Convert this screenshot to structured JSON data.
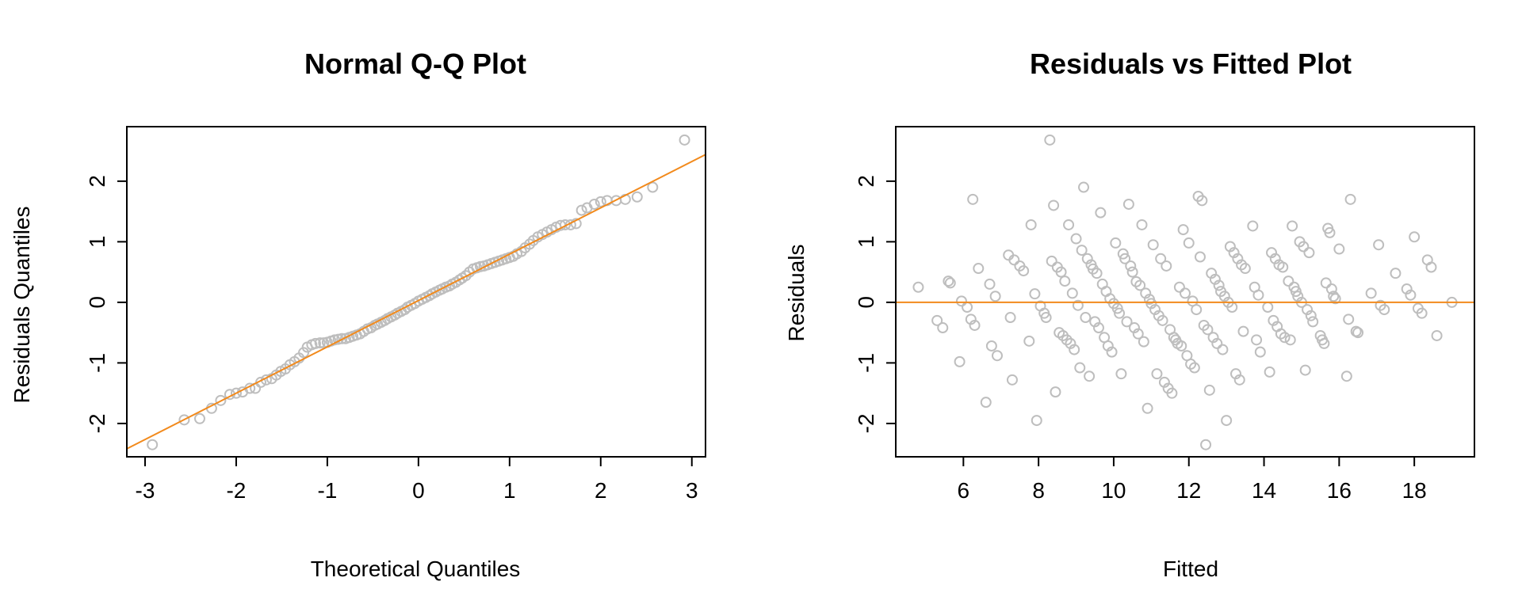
{
  "colors": {
    "points": "#bebebe",
    "line": "#f28a1c",
    "frame": "#000000",
    "background": "#ffffff"
  },
  "chart_data": [
    {
      "id": "qq",
      "type": "scatter",
      "title": "Normal Q-Q Plot",
      "xlabel": "Theoretical Quantiles",
      "ylabel": "Residuals Quantiles",
      "xlim": [
        -3.2,
        3.15
      ],
      "ylim": [
        -2.55,
        2.9
      ],
      "xticks": [
        {
          "v": -3,
          "label": "-3"
        },
        {
          "v": -2,
          "label": "-2"
        },
        {
          "v": -1,
          "label": "-1"
        },
        {
          "v": 0,
          "label": "0"
        },
        {
          "v": 1,
          "label": "1"
        },
        {
          "v": 2,
          "label": "2"
        },
        {
          "v": 3,
          "label": "3"
        }
      ],
      "yticks": [
        {
          "v": -2,
          "label": "-2"
        },
        {
          "v": -1,
          "label": "-1"
        },
        {
          "v": 0,
          "label": "0"
        },
        {
          "v": 1,
          "label": "1"
        },
        {
          "v": 2,
          "label": "2"
        }
      ],
      "reference_line": {
        "intercept": 0.03,
        "slope": 0.765
      },
      "points": [
        [
          -2.92,
          -2.35
        ],
        [
          -2.57,
          -1.94
        ],
        [
          -2.4,
          -1.92
        ],
        [
          -2.27,
          -1.75
        ],
        [
          -2.17,
          -1.62
        ],
        [
          -2.07,
          -1.52
        ],
        [
          -2.0,
          -1.5
        ],
        [
          -1.93,
          -1.48
        ],
        [
          -1.85,
          -1.42
        ],
        [
          -1.79,
          -1.42
        ],
        [
          -1.73,
          -1.32
        ],
        [
          -1.67,
          -1.28
        ],
        [
          -1.61,
          -1.26
        ],
        [
          -1.56,
          -1.2
        ],
        [
          -1.51,
          -1.14
        ],
        [
          -1.46,
          -1.1
        ],
        [
          -1.41,
          -1.03
        ],
        [
          -1.36,
          -0.98
        ],
        [
          -1.31,
          -0.92
        ],
        [
          -1.26,
          -0.83
        ],
        [
          -1.22,
          -0.74
        ],
        [
          -1.17,
          -0.7
        ],
        [
          -1.13,
          -0.68
        ],
        [
          -1.08,
          -0.67
        ],
        [
          -1.04,
          -0.67
        ],
        [
          -1.0,
          -0.66
        ],
        [
          -0.96,
          -0.64
        ],
        [
          -0.92,
          -0.62
        ],
        [
          -0.88,
          -0.61
        ],
        [
          -0.84,
          -0.6
        ],
        [
          -0.8,
          -0.6
        ],
        [
          -0.76,
          -0.58
        ],
        [
          -0.72,
          -0.56
        ],
        [
          -0.68,
          -0.54
        ],
        [
          -0.64,
          -0.52
        ],
        [
          -0.6,
          -0.48
        ],
        [
          -0.56,
          -0.44
        ],
        [
          -0.52,
          -0.42
        ],
        [
          -0.48,
          -0.38
        ],
        [
          -0.45,
          -0.36
        ],
        [
          -0.41,
          -0.33
        ],
        [
          -0.37,
          -0.3
        ],
        [
          -0.34,
          -0.27
        ],
        [
          -0.3,
          -0.24
        ],
        [
          -0.26,
          -0.21
        ],
        [
          -0.23,
          -0.18
        ],
        [
          -0.19,
          -0.15
        ],
        [
          -0.15,
          -0.12
        ],
        [
          -0.12,
          -0.08
        ],
        [
          -0.08,
          -0.05
        ],
        [
          -0.04,
          -0.02
        ],
        [
          0.0,
          0.02
        ],
        [
          0.04,
          0.05
        ],
        [
          0.08,
          0.08
        ],
        [
          0.12,
          0.11
        ],
        [
          0.15,
          0.14
        ],
        [
          0.19,
          0.17
        ],
        [
          0.23,
          0.2
        ],
        [
          0.26,
          0.22
        ],
        [
          0.3,
          0.25
        ],
        [
          0.34,
          0.27
        ],
        [
          0.37,
          0.3
        ],
        [
          0.41,
          0.33
        ],
        [
          0.45,
          0.37
        ],
        [
          0.48,
          0.4
        ],
        [
          0.52,
          0.44
        ],
        [
          0.56,
          0.5
        ],
        [
          0.6,
          0.55
        ],
        [
          0.64,
          0.57
        ],
        [
          0.68,
          0.59
        ],
        [
          0.72,
          0.6
        ],
        [
          0.76,
          0.62
        ],
        [
          0.8,
          0.64
        ],
        [
          0.84,
          0.66
        ],
        [
          0.88,
          0.68
        ],
        [
          0.92,
          0.7
        ],
        [
          0.96,
          0.72
        ],
        [
          1.0,
          0.74
        ],
        [
          1.04,
          0.76
        ],
        [
          1.08,
          0.8
        ],
        [
          1.13,
          0.84
        ],
        [
          1.17,
          0.9
        ],
        [
          1.22,
          0.96
        ],
        [
          1.26,
          1.02
        ],
        [
          1.31,
          1.08
        ],
        [
          1.36,
          1.12
        ],
        [
          1.41,
          1.16
        ],
        [
          1.46,
          1.2
        ],
        [
          1.51,
          1.24
        ],
        [
          1.56,
          1.27
        ],
        [
          1.61,
          1.28
        ],
        [
          1.67,
          1.28
        ],
        [
          1.73,
          1.3
        ],
        [
          1.79,
          1.52
        ],
        [
          1.85,
          1.56
        ],
        [
          1.93,
          1.62
        ],
        [
          2.0,
          1.66
        ],
        [
          2.07,
          1.68
        ],
        [
          2.17,
          1.68
        ],
        [
          2.27,
          1.7
        ],
        [
          2.4,
          1.74
        ],
        [
          2.57,
          1.9
        ],
        [
          2.92,
          2.68
        ]
      ]
    },
    {
      "id": "rvf",
      "type": "scatter",
      "title": "Residuals vs Fitted Plot",
      "xlabel": "Fitted",
      "ylabel": "Residuals",
      "xlim": [
        4.2,
        19.6
      ],
      "ylim": [
        -2.55,
        2.9
      ],
      "xticks": [
        {
          "v": 6,
          "label": "6"
        },
        {
          "v": 8,
          "label": "8"
        },
        {
          "v": 10,
          "label": "10"
        },
        {
          "v": 12,
          "label": "12"
        },
        {
          "v": 14,
          "label": "14"
        },
        {
          "v": 16,
          "label": "16"
        },
        {
          "v": 18,
          "label": "18"
        }
      ],
      "yticks": [
        {
          "v": -2,
          "label": "-2"
        },
        {
          "v": -1,
          "label": "-1"
        },
        {
          "v": 0,
          "label": "0"
        },
        {
          "v": 1,
          "label": "1"
        },
        {
          "v": 2,
          "label": "2"
        }
      ],
      "reference_line": {
        "intercept": 0,
        "slope": 0
      },
      "points": [
        [
          4.8,
          0.25
        ],
        [
          5.3,
          -0.3
        ],
        [
          5.45,
          -0.42
        ],
        [
          5.6,
          0.35
        ],
        [
          5.65,
          0.32
        ],
        [
          5.9,
          -0.98
        ],
        [
          5.95,
          0.02
        ],
        [
          6.1,
          -0.08
        ],
        [
          6.2,
          -0.28
        ],
        [
          6.25,
          1.7
        ],
        [
          6.3,
          -0.38
        ],
        [
          6.4,
          0.56
        ],
        [
          6.6,
          -1.65
        ],
        [
          6.7,
          0.3
        ],
        [
          6.75,
          -0.72
        ],
        [
          6.85,
          0.1
        ],
        [
          6.9,
          -0.88
        ],
        [
          7.2,
          0.78
        ],
        [
          7.25,
          -0.25
        ],
        [
          7.3,
          -1.28
        ],
        [
          7.35,
          0.7
        ],
        [
          7.5,
          0.6
        ],
        [
          7.6,
          0.52
        ],
        [
          7.75,
          -0.64
        ],
        [
          7.8,
          1.28
        ],
        [
          7.9,
          0.14
        ],
        [
          7.95,
          -1.95
        ],
        [
          8.05,
          -0.06
        ],
        [
          8.15,
          -0.18
        ],
        [
          8.2,
          -0.25
        ],
        [
          8.3,
          2.68
        ],
        [
          8.35,
          0.68
        ],
        [
          8.4,
          1.6
        ],
        [
          8.45,
          -1.48
        ],
        [
          8.5,
          0.58
        ],
        [
          8.55,
          -0.5
        ],
        [
          8.6,
          0.5
        ],
        [
          8.65,
          -0.55
        ],
        [
          8.7,
          0.35
        ],
        [
          8.75,
          -0.62
        ],
        [
          8.8,
          1.28
        ],
        [
          8.85,
          -0.68
        ],
        [
          8.9,
          0.15
        ],
        [
          8.95,
          -0.78
        ],
        [
          9.0,
          1.05
        ],
        [
          9.05,
          -0.05
        ],
        [
          9.1,
          -1.08
        ],
        [
          9.15,
          0.86
        ],
        [
          9.2,
          1.9
        ],
        [
          9.25,
          -0.25
        ],
        [
          9.3,
          0.72
        ],
        [
          9.35,
          -1.22
        ],
        [
          9.4,
          0.62
        ],
        [
          9.45,
          0.55
        ],
        [
          9.5,
          -0.32
        ],
        [
          9.55,
          0.48
        ],
        [
          9.6,
          -0.42
        ],
        [
          9.65,
          1.48
        ],
        [
          9.7,
          0.3
        ],
        [
          9.75,
          -0.58
        ],
        [
          9.8,
          0.18
        ],
        [
          9.85,
          -0.72
        ],
        [
          9.9,
          0.06
        ],
        [
          9.95,
          -0.82
        ],
        [
          10.0,
          -0.02
        ],
        [
          10.05,
          0.98
        ],
        [
          10.1,
          -0.1
        ],
        [
          10.15,
          -0.18
        ],
        [
          10.2,
          -1.18
        ],
        [
          10.25,
          0.8
        ],
        [
          10.3,
          0.72
        ],
        [
          10.35,
          -0.32
        ],
        [
          10.4,
          1.62
        ],
        [
          10.45,
          0.6
        ],
        [
          10.5,
          0.5
        ],
        [
          10.55,
          -0.42
        ],
        [
          10.6,
          0.34
        ],
        [
          10.65,
          -0.52
        ],
        [
          10.7,
          0.28
        ],
        [
          10.75,
          1.28
        ],
        [
          10.8,
          -0.65
        ],
        [
          10.85,
          0.15
        ],
        [
          10.9,
          -1.75
        ],
        [
          10.95,
          0.05
        ],
        [
          11.0,
          -0.02
        ],
        [
          11.05,
          0.95
        ],
        [
          11.1,
          -0.12
        ],
        [
          11.15,
          -1.18
        ],
        [
          11.2,
          -0.22
        ],
        [
          11.25,
          0.72
        ],
        [
          11.3,
          -0.3
        ],
        [
          11.35,
          -1.32
        ],
        [
          11.4,
          0.6
        ],
        [
          11.45,
          -1.42
        ],
        [
          11.5,
          -0.45
        ],
        [
          11.55,
          -1.5
        ],
        [
          11.6,
          -0.58
        ],
        [
          11.65,
          -0.62
        ],
        [
          11.7,
          -0.68
        ],
        [
          11.75,
          0.25
        ],
        [
          11.8,
          -0.72
        ],
        [
          11.85,
          1.2
        ],
        [
          11.9,
          0.15
        ],
        [
          11.95,
          -0.88
        ],
        [
          12.0,
          0.98
        ],
        [
          12.05,
          -1.02
        ],
        [
          12.1,
          0.02
        ],
        [
          12.15,
          -1.08
        ],
        [
          12.2,
          -0.12
        ],
        [
          12.25,
          1.75
        ],
        [
          12.3,
          0.75
        ],
        [
          12.35,
          1.68
        ],
        [
          12.4,
          -0.38
        ],
        [
          12.45,
          -2.35
        ],
        [
          12.5,
          -0.45
        ],
        [
          12.55,
          -1.45
        ],
        [
          12.6,
          0.48
        ],
        [
          12.65,
          -0.58
        ],
        [
          12.7,
          0.38
        ],
        [
          12.75,
          -0.68
        ],
        [
          12.8,
          0.28
        ],
        [
          12.85,
          0.18
        ],
        [
          12.9,
          -0.78
        ],
        [
          12.95,
          0.1
        ],
        [
          13.0,
          -1.95
        ],
        [
          13.05,
          0.0
        ],
        [
          13.1,
          0.92
        ],
        [
          13.15,
          -0.08
        ],
        [
          13.2,
          0.82
        ],
        [
          13.25,
          -1.18
        ],
        [
          13.3,
          0.72
        ],
        [
          13.35,
          -1.28
        ],
        [
          13.4,
          0.62
        ],
        [
          13.45,
          -0.48
        ],
        [
          13.5,
          0.56
        ],
        [
          13.7,
          1.26
        ],
        [
          13.75,
          0.25
        ],
        [
          13.8,
          -0.62
        ],
        [
          13.85,
          0.12
        ],
        [
          13.9,
          -0.82
        ],
        [
          14.1,
          -0.08
        ],
        [
          14.15,
          -1.15
        ],
        [
          14.2,
          0.82
        ],
        [
          14.25,
          -0.3
        ],
        [
          14.3,
          0.72
        ],
        [
          14.35,
          -0.4
        ],
        [
          14.4,
          0.62
        ],
        [
          14.45,
          -0.52
        ],
        [
          14.5,
          0.58
        ],
        [
          14.55,
          -0.58
        ],
        [
          14.65,
          0.35
        ],
        [
          14.7,
          -0.62
        ],
        [
          14.75,
          1.26
        ],
        [
          14.8,
          0.25
        ],
        [
          14.85,
          0.18
        ],
        [
          14.9,
          0.1
        ],
        [
          14.95,
          1.0
        ],
        [
          15.0,
          0.0
        ],
        [
          15.05,
          0.92
        ],
        [
          15.1,
          -1.12
        ],
        [
          15.15,
          -0.12
        ],
        [
          15.2,
          0.82
        ],
        [
          15.25,
          -0.22
        ],
        [
          15.3,
          -0.32
        ],
        [
          15.5,
          -0.55
        ],
        [
          15.55,
          -0.62
        ],
        [
          15.6,
          -0.68
        ],
        [
          15.65,
          0.32
        ],
        [
          15.7,
          1.22
        ],
        [
          15.75,
          1.15
        ],
        [
          15.8,
          0.22
        ],
        [
          15.85,
          0.1
        ],
        [
          15.9,
          0.06
        ],
        [
          16.0,
          0.88
        ],
        [
          16.2,
          -1.22
        ],
        [
          16.25,
          -0.28
        ],
        [
          16.3,
          1.7
        ],
        [
          16.45,
          -0.48
        ],
        [
          16.5,
          -0.5
        ],
        [
          16.85,
          0.15
        ],
        [
          17.05,
          0.95
        ],
        [
          17.1,
          -0.05
        ],
        [
          17.2,
          -0.12
        ],
        [
          17.5,
          0.48
        ],
        [
          17.8,
          0.22
        ],
        [
          17.9,
          0.12
        ],
        [
          18.0,
          1.08
        ],
        [
          18.1,
          -0.1
        ],
        [
          18.2,
          -0.18
        ],
        [
          18.35,
          0.7
        ],
        [
          18.45,
          0.58
        ],
        [
          18.6,
          -0.55
        ],
        [
          19.0,
          0.0
        ]
      ]
    }
  ]
}
